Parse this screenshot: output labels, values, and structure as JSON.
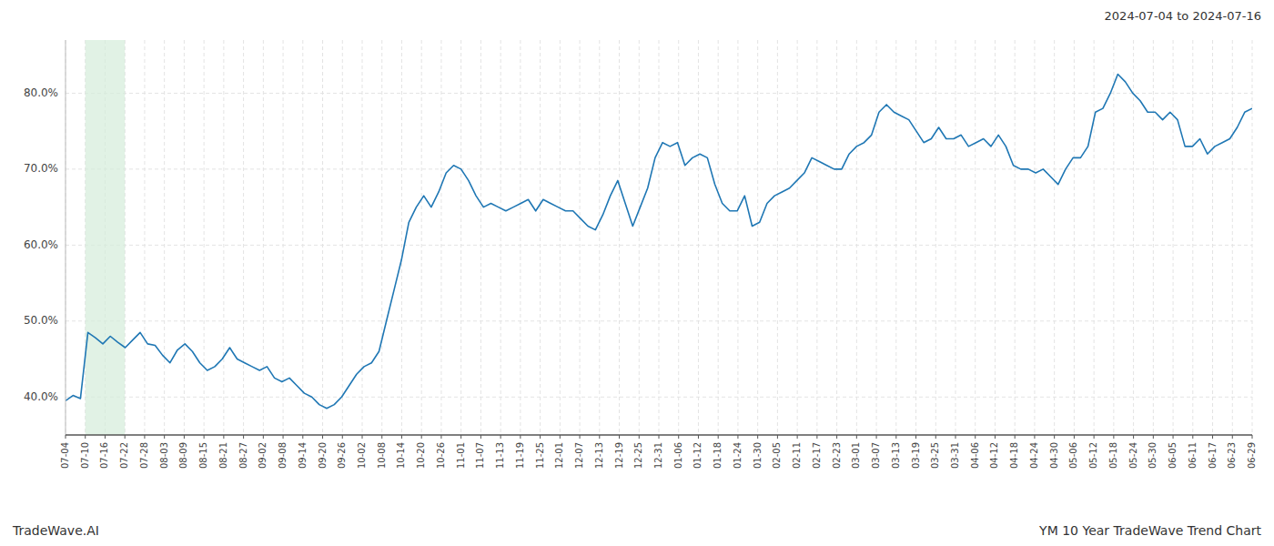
{
  "chart_data": {
    "type": "line",
    "title": "YM 10 Year TradeWave Trend Chart",
    "subtitle": "2024-07-04 to 2024-07-16",
    "annotations": [
      "TradeWave.AI"
    ],
    "grid": true,
    "xlim": [
      0,
      60
    ],
    "xticks": [
      {
        "value": 0,
        "label": "07-04"
      },
      {
        "value": 1,
        "label": "07-10"
      },
      {
        "value": 2,
        "label": "07-16"
      },
      {
        "value": 3,
        "label": "07-22"
      },
      {
        "value": 4,
        "label": "07-28"
      },
      {
        "value": 5,
        "label": "08-03"
      },
      {
        "value": 6,
        "label": "08-09"
      },
      {
        "value": 7,
        "label": "08-15"
      },
      {
        "value": 8,
        "label": "08-21"
      },
      {
        "value": 9,
        "label": "08-27"
      },
      {
        "value": 10,
        "label": "09-02"
      },
      {
        "value": 11,
        "label": "09-08"
      },
      {
        "value": 12,
        "label": "09-14"
      },
      {
        "value": 13,
        "label": "09-20"
      },
      {
        "value": 14,
        "label": "09-26"
      },
      {
        "value": 15,
        "label": "10-02"
      },
      {
        "value": 16,
        "label": "10-08"
      },
      {
        "value": 17,
        "label": "10-14"
      },
      {
        "value": 18,
        "label": "10-20"
      },
      {
        "value": 19,
        "label": "10-26"
      },
      {
        "value": 20,
        "label": "11-01"
      },
      {
        "value": 21,
        "label": "11-07"
      },
      {
        "value": 22,
        "label": "11-13"
      },
      {
        "value": 23,
        "label": "11-19"
      },
      {
        "value": 24,
        "label": "11-25"
      },
      {
        "value": 25,
        "label": "12-01"
      },
      {
        "value": 26,
        "label": "12-07"
      },
      {
        "value": 27,
        "label": "12-13"
      },
      {
        "value": 28,
        "label": "12-19"
      },
      {
        "value": 29,
        "label": "12-25"
      },
      {
        "value": 30,
        "label": "12-31"
      },
      {
        "value": 31,
        "label": "01-06"
      },
      {
        "value": 32,
        "label": "01-12"
      },
      {
        "value": 33,
        "label": "01-18"
      },
      {
        "value": 34,
        "label": "01-24"
      },
      {
        "value": 35,
        "label": "01-30"
      },
      {
        "value": 36,
        "label": "02-05"
      },
      {
        "value": 37,
        "label": "02-11"
      },
      {
        "value": 38,
        "label": "02-17"
      },
      {
        "value": 39,
        "label": "02-23"
      },
      {
        "value": 40,
        "label": "03-01"
      },
      {
        "value": 41,
        "label": "03-07"
      },
      {
        "value": 42,
        "label": "03-13"
      },
      {
        "value": 43,
        "label": "03-19"
      },
      {
        "value": 44,
        "label": "03-25"
      },
      {
        "value": 45,
        "label": "03-31"
      },
      {
        "value": 46,
        "label": "04-06"
      },
      {
        "value": 47,
        "label": "04-12"
      },
      {
        "value": 48,
        "label": "04-18"
      },
      {
        "value": 49,
        "label": "04-24"
      },
      {
        "value": 50,
        "label": "04-30"
      },
      {
        "value": 51,
        "label": "05-06"
      },
      {
        "value": 52,
        "label": "05-12"
      },
      {
        "value": 53,
        "label": "05-18"
      },
      {
        "value": 54,
        "label": "05-24"
      },
      {
        "value": 55,
        "label": "05-30"
      },
      {
        "value": 56,
        "label": "06-05"
      },
      {
        "value": 57,
        "label": "06-11"
      },
      {
        "value": 58,
        "label": "06-17"
      },
      {
        "value": 59,
        "label": "06-23"
      },
      {
        "value": 60,
        "label": "06-29"
      }
    ],
    "ylim": [
      35.0,
      87.0
    ],
    "yticks": [
      {
        "value": 40.0,
        "label": "40.0%"
      },
      {
        "value": 50.0,
        "label": "50.0%"
      },
      {
        "value": 60.0,
        "label": "60.0%"
      },
      {
        "value": 70.0,
        "label": "70.0%"
      },
      {
        "value": 80.0,
        "label": "80.0%"
      }
    ],
    "highlight": {
      "x": [
        1,
        3
      ],
      "color": "#d4edda"
    },
    "series": [
      {
        "color": "#1f77b4",
        "values": [
          39.5,
          40.2,
          39.8,
          48.5,
          47.8,
          47.0,
          48.0,
          47.2,
          46.5,
          47.5,
          48.5,
          47.0,
          46.8,
          45.5,
          44.5,
          46.2,
          47.0,
          46.0,
          44.5,
          43.5,
          44.0,
          45.0,
          46.5,
          45.0,
          44.5,
          44.0,
          43.5,
          44.0,
          42.5,
          42.0,
          42.5,
          41.5,
          40.5,
          40.0,
          39.0,
          38.5,
          39.0,
          40.0,
          41.5,
          43.0,
          44.0,
          44.5,
          46.0,
          50.0,
          54.0,
          58.0,
          63.0,
          65.0,
          66.5,
          65.0,
          67.0,
          69.5,
          70.5,
          70.0,
          68.5,
          66.5,
          65.0,
          65.5,
          65.0,
          64.5,
          65.0,
          65.5,
          66.0,
          64.5,
          66.0,
          65.5,
          65.0,
          64.5,
          64.5,
          63.5,
          62.5,
          62.0,
          64.0,
          66.5,
          68.5,
          65.5,
          62.5,
          65.0,
          67.5,
          71.5,
          73.5,
          73.0,
          73.5,
          70.5,
          71.5,
          72.0,
          71.5,
          68.0,
          65.5,
          64.5,
          64.5,
          66.5,
          62.5,
          63.0,
          65.5,
          66.5,
          67.0,
          67.5,
          68.5,
          69.5,
          71.5,
          71.0,
          70.5,
          70.0,
          70.0,
          72.0,
          73.0,
          73.5,
          74.5,
          77.5,
          78.5,
          77.5,
          77.0,
          76.5,
          75.0,
          73.5,
          74.0,
          75.5,
          74.0,
          74.0,
          74.5,
          73.0,
          73.5,
          74.0,
          73.0,
          74.5,
          73.0,
          70.5,
          70.0,
          70.0,
          69.5,
          70.0,
          69.0,
          68.0,
          70.0,
          71.5,
          71.5,
          73.0,
          77.5,
          78.0,
          80.0,
          82.5,
          81.5,
          80.0,
          79.0,
          77.5,
          77.5,
          76.5,
          77.5,
          76.5,
          73.0,
          73.0,
          74.0,
          72.0,
          73.0,
          73.5,
          74.0,
          75.5,
          77.5,
          78.0
        ]
      }
    ]
  }
}
